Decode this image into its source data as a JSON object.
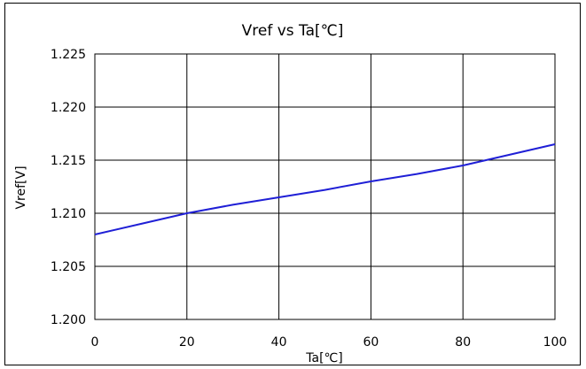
{
  "chart_data": {
    "type": "line",
    "title": "Vref vs Ta[℃]",
    "xlabel": "Ta[℃]",
    "ylabel": "Vref[V]",
    "xlim": [
      0,
      100
    ],
    "ylim": [
      1.2,
      1.225
    ],
    "x_ticks": [
      "0",
      "20",
      "40",
      "60",
      "80",
      "100"
    ],
    "y_ticks": [
      "1.200",
      "1.205",
      "1.210",
      "1.215",
      "1.220",
      "1.225"
    ],
    "grid": true,
    "line_color": "#1f1fd6",
    "series": [
      {
        "x": [
          0,
          10,
          20,
          30,
          40,
          50,
          60,
          70,
          80,
          90,
          100
        ],
        "values": [
          1.208,
          1.209,
          1.21,
          1.2108,
          1.2115,
          1.2122,
          1.213,
          1.2137,
          1.2145,
          1.2155,
          1.2165
        ]
      }
    ]
  }
}
